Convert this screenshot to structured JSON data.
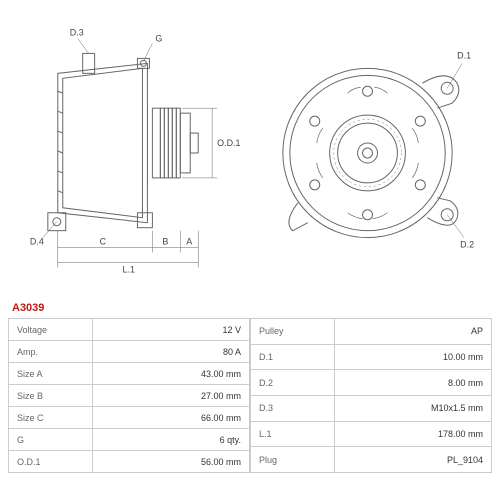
{
  "part_code": "A3039",
  "diagrams": {
    "left": {
      "labels": [
        "D.3",
        "G",
        "D.4",
        "C",
        "B",
        "A",
        "L.1",
        "O.D.1"
      ],
      "stroke": "#666666",
      "stroke_width": 1
    },
    "right": {
      "labels": [
        "D.1",
        "D.2"
      ],
      "stroke": "#666666",
      "stroke_width": 1
    }
  },
  "specs_left": [
    {
      "label": "Voltage",
      "value": "12 V"
    },
    {
      "label": "Amp.",
      "value": "80 A"
    },
    {
      "label": "Size A",
      "value": "43.00 mm"
    },
    {
      "label": "Size B",
      "value": "27.00 mm"
    },
    {
      "label": "Size C",
      "value": "66.00 mm"
    },
    {
      "label": "G",
      "value": "6 qty."
    },
    {
      "label": "O.D.1",
      "value": "56.00 mm"
    }
  ],
  "specs_right": [
    {
      "label": "Pulley",
      "value": "AP"
    },
    {
      "label": "D.1",
      "value": "10.00 mm"
    },
    {
      "label": "D.2",
      "value": "8.00 mm"
    },
    {
      "label": "D.3",
      "value": "M10x1.5 mm"
    },
    {
      "label": "L.1",
      "value": "178.00 mm"
    },
    {
      "label": "Plug",
      "value": "PL_9104"
    }
  ],
  "colors": {
    "border": "#cccccc",
    "text": "#333333",
    "label_text": "#666666",
    "part_code": "#c01818",
    "diagram_stroke": "#666666",
    "background": "#ffffff"
  }
}
